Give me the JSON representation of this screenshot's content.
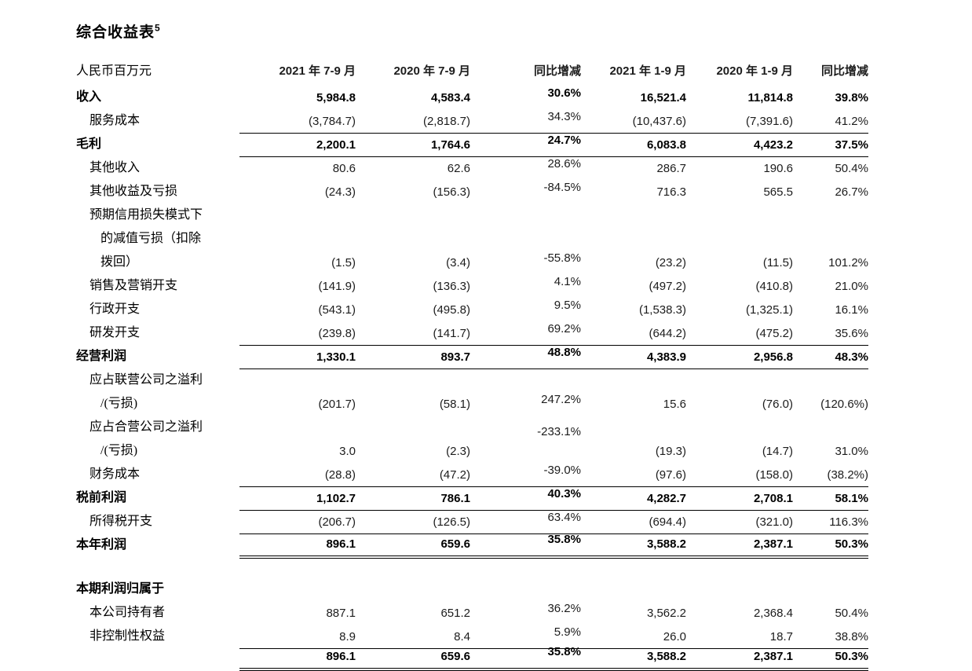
{
  "title": {
    "text": "综合收益表",
    "superscript": "5"
  },
  "table": {
    "unit_label": "人民币百万元",
    "columns": [
      "2021 年 7-9 月",
      "2020 年 7-9 月",
      "同比增减",
      "2021 年 1-9 月",
      "2020 年 1-9 月",
      "同比增减"
    ],
    "rows": [
      {
        "label": "收入",
        "indent": 0,
        "bold": true,
        "line": "none",
        "values": [
          "5,984.8",
          "4,583.4",
          "30.6%",
          "16,521.4",
          "11,814.8",
          "39.8%"
        ]
      },
      {
        "label": "服务成本",
        "indent": 1,
        "bold": false,
        "line": "bottom",
        "values": [
          "(3,784.7)",
          "(2,818.7)",
          "34.3%",
          "(10,437.6)",
          "(7,391.6)",
          "41.2%"
        ]
      },
      {
        "label": "毛利",
        "indent": 0,
        "bold": true,
        "line": "bottom",
        "values": [
          "2,200.1",
          "1,764.6",
          "24.7%",
          "6,083.8",
          "4,423.2",
          "37.5%"
        ]
      },
      {
        "label": "其他收入",
        "indent": 1,
        "bold": false,
        "line": "none",
        "values": [
          "80.6",
          "62.6",
          "28.6%",
          "286.7",
          "190.6",
          "50.4%"
        ]
      },
      {
        "label": "其他收益及亏损",
        "indent": 1,
        "bold": false,
        "line": "none",
        "values": [
          "(24.3)",
          "(156.3)",
          "-84.5%",
          "716.3",
          "565.5",
          "26.7%"
        ]
      },
      {
        "label": "预期信用损失模式下",
        "indent": 1,
        "bold": false,
        "line": "none",
        "values": [
          "",
          "",
          "",
          "",
          "",
          ""
        ]
      },
      {
        "label": "的减值亏损（扣除",
        "indent": 2,
        "bold": false,
        "line": "none",
        "values": [
          "",
          "",
          "",
          "",
          "",
          ""
        ]
      },
      {
        "label": "拨回）",
        "indent": 2,
        "bold": false,
        "line": "none",
        "values": [
          "(1.5)",
          "(3.4)",
          "-55.8%",
          "(23.2)",
          "(11.5)",
          "101.2%"
        ]
      },
      {
        "label": "销售及营销开支",
        "indent": 1,
        "bold": false,
        "line": "none",
        "values": [
          "(141.9)",
          "(136.3)",
          "4.1%",
          "(497.2)",
          "(410.8)",
          "21.0%"
        ]
      },
      {
        "label": "行政开支",
        "indent": 1,
        "bold": false,
        "line": "none",
        "values": [
          "(543.1)",
          "(495.8)",
          "9.5%",
          "(1,538.3)",
          "(1,325.1)",
          "16.1%"
        ]
      },
      {
        "label": "研发开支",
        "indent": 1,
        "bold": false,
        "line": "bottom",
        "values": [
          "(239.8)",
          "(141.7)",
          "69.2%",
          "(644.2)",
          "(475.2)",
          "35.6%"
        ]
      },
      {
        "label": "经营利润",
        "indent": 0,
        "bold": true,
        "line": "bottom",
        "values": [
          "1,330.1",
          "893.7",
          "48.8%",
          "4,383.9",
          "2,956.8",
          "48.3%"
        ]
      },
      {
        "label": "应占联营公司之溢利",
        "indent": 1,
        "bold": false,
        "line": "none",
        "values": [
          "",
          "",
          "",
          "",
          "",
          ""
        ]
      },
      {
        "label": "/(亏损)",
        "indent": 2,
        "bold": false,
        "line": "none",
        "values": [
          "(201.7)",
          "(58.1)",
          "247.2%",
          "15.6",
          "(76.0)",
          "(120.6%)"
        ]
      },
      {
        "label": "应占合营公司之溢利",
        "indent": 1,
        "bold": false,
        "line": "none",
        "pct_shift": "down",
        "values": [
          "",
          "",
          "-233.1%",
          "",
          "",
          ""
        ]
      },
      {
        "label": "/(亏损)",
        "indent": 2,
        "bold": false,
        "line": "none",
        "values": [
          "3.0",
          "(2.3)",
          "",
          "(19.3)",
          "(14.7)",
          "31.0%"
        ]
      },
      {
        "label": "财务成本",
        "indent": 1,
        "bold": false,
        "line": "bottom",
        "values": [
          "(28.8)",
          "(47.2)",
          "-39.0%",
          "(97.6)",
          "(158.0)",
          "(38.2%)"
        ]
      },
      {
        "label": "税前利润",
        "indent": 0,
        "bold": true,
        "line": "bottom",
        "values": [
          "1,102.7",
          "786.1",
          "40.3%",
          "4,282.7",
          "2,708.1",
          "58.1%"
        ]
      },
      {
        "label": "所得税开支",
        "indent": 1,
        "bold": false,
        "line": "bottom",
        "values": [
          "(206.7)",
          "(126.5)",
          "63.4%",
          "(694.4)",
          "(321.0)",
          "116.3%"
        ]
      },
      {
        "label": "本年利润",
        "indent": 0,
        "bold": true,
        "line": "double",
        "values": [
          "896.1",
          "659.6",
          "35.8%",
          "3,588.2",
          "2,387.1",
          "50.3%"
        ]
      },
      {
        "spacer": true
      },
      {
        "label": "本期利润归属于",
        "indent": 0,
        "bold": true,
        "line": "none",
        "values": [
          "",
          "",
          "",
          "",
          "",
          ""
        ]
      },
      {
        "label": "本公司持有者",
        "indent": 1,
        "bold": false,
        "line": "none",
        "values": [
          "887.1",
          "651.2",
          "36.2%",
          "3,562.2",
          "2,368.4",
          "50.4%"
        ]
      },
      {
        "label": "非控制性权益",
        "indent": 1,
        "bold": false,
        "line": "bottom",
        "values": [
          "8.9",
          "8.4",
          "5.9%",
          "26.0",
          "18.7",
          "38.8%"
        ]
      },
      {
        "label": "",
        "indent": 0,
        "bold": true,
        "line": "double",
        "values": [
          "896.1",
          "659.6",
          "35.8%",
          "3,588.2",
          "2,387.1",
          "50.3%"
        ]
      }
    ]
  }
}
